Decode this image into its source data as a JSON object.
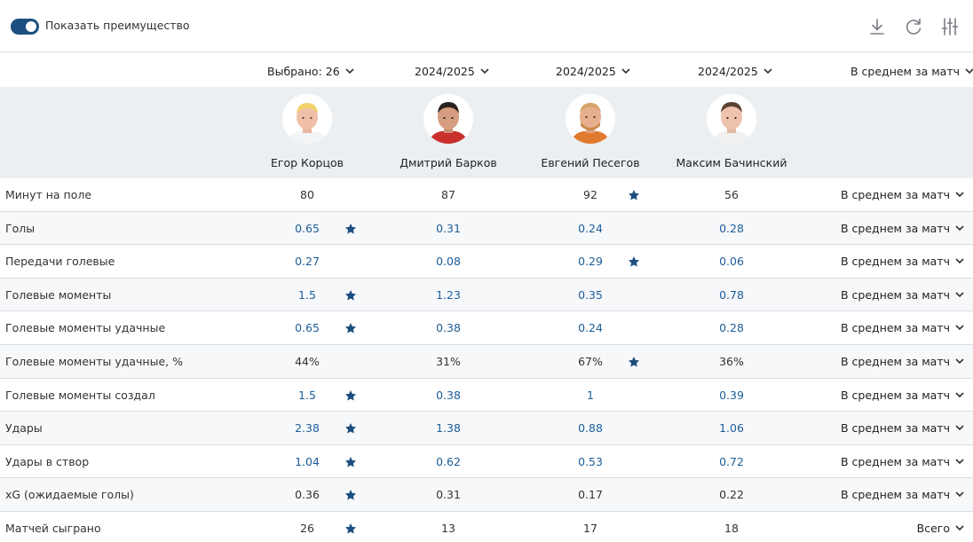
{
  "header": {
    "toggle_label": "Показать преимущество",
    "toggle_on": true,
    "icons": [
      "download-icon",
      "refresh-icon",
      "settings-sliders-icon"
    ]
  },
  "selectors": {
    "selected": "Выбрано: 26",
    "season_1": "2024/2025",
    "season_2": "2024/2025",
    "season_3": "2024/2025",
    "mode": "В среднем за матч"
  },
  "players": [
    {
      "name": "Егор Корцов"
    },
    {
      "name": "Дмитрий Барков"
    },
    {
      "name": "Евгений Песегов"
    },
    {
      "name": "Максим Бачинский"
    }
  ],
  "stats": [
    {
      "label": "Минут на поле",
      "values": [
        "80",
        "87",
        "92",
        "56"
      ],
      "best": 2,
      "link": false,
      "mode": "В среднем за матч"
    },
    {
      "label": "Голы",
      "values": [
        "0.65",
        "0.31",
        "0.24",
        "0.28"
      ],
      "best": 0,
      "link": true,
      "mode": "В среднем за матч"
    },
    {
      "label": "Передачи голевые",
      "values": [
        "0.27",
        "0.08",
        "0.29",
        "0.06"
      ],
      "best": 2,
      "link": true,
      "mode": "В среднем за матч"
    },
    {
      "label": "Голевые моменты",
      "values": [
        "1.5",
        "1.23",
        "0.35",
        "0.78"
      ],
      "best": 0,
      "link": true,
      "mode": "В среднем за матч"
    },
    {
      "label": "Голевые моменты удачные",
      "values": [
        "0.65",
        "0.38",
        "0.24",
        "0.28"
      ],
      "best": 0,
      "link": true,
      "mode": "В среднем за матч"
    },
    {
      "label": "Голевые моменты удачные, %",
      "values": [
        "44%",
        "31%",
        "67%",
        "36%"
      ],
      "best": 2,
      "link": false,
      "mode": "В среднем за матч"
    },
    {
      "label": "Голевые моменты создал",
      "values": [
        "1.5",
        "0.38",
        "1",
        "0.39"
      ],
      "best": 0,
      "link": true,
      "mode": "В среднем за матч"
    },
    {
      "label": "Удары",
      "values": [
        "2.38",
        "1.38",
        "0.88",
        "1.06"
      ],
      "best": 0,
      "link": true,
      "mode": "В среднем за матч"
    },
    {
      "label": "Удары в створ",
      "values": [
        "1.04",
        "0.62",
        "0.53",
        "0.72"
      ],
      "best": 0,
      "link": true,
      "mode": "В среднем за матч"
    },
    {
      "label": "xG (ожидаемые голы)",
      "values": [
        "0.36",
        "0.31",
        "0.17",
        "0.22"
      ],
      "best": 0,
      "link": false,
      "mode": "В среднем за матч"
    },
    {
      "label": "Матчей сыграно",
      "values": [
        "26",
        "13",
        "17",
        "18"
      ],
      "best": 0,
      "link": false,
      "mode": "Всего"
    }
  ],
  "colors": {
    "accent": "#1c4f7f",
    "link": "#1c5d99",
    "star": "#1c4f7f",
    "player_band": "#eceff2",
    "divider": "#d9dde2"
  }
}
